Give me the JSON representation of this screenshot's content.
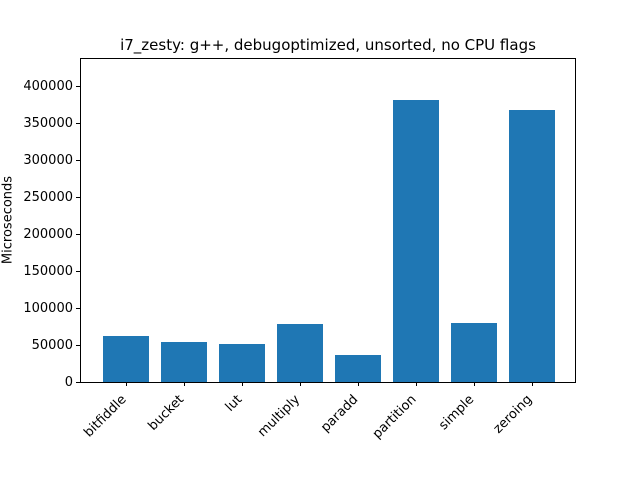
{
  "chart_data": {
    "type": "bar",
    "title": "i7_zesty: g++, debugoptimized, unsorted, no CPU flags",
    "xlabel": "",
    "ylabel": "Microseconds",
    "categories": [
      "bitfiddle",
      "bucket",
      "lut",
      "multiply",
      "paradd",
      "partition",
      "simple",
      "zeroing"
    ],
    "values": [
      62000,
      54000,
      52000,
      79000,
      36000,
      381000,
      80000,
      368000
    ],
    "bar_color": "#1f77b4",
    "ylim": [
      0,
      437000
    ],
    "yticks": [
      0,
      50000,
      100000,
      150000,
      200000,
      250000,
      300000,
      350000,
      400000
    ],
    "x_tick_rotation_deg": 45,
    "grid": false,
    "legend": "none",
    "background_color": "#ffffff",
    "axes_color": "#000000"
  }
}
